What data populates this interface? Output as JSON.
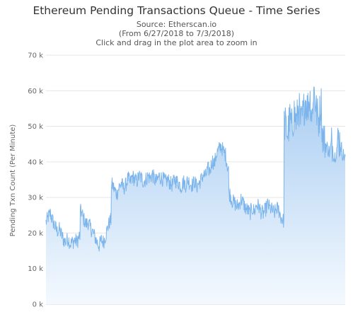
{
  "chart_data": {
    "type": "area",
    "title": "Ethereum Pending Transactions Queue - Time Series",
    "subtitle_lines": [
      "Source: Etherscan.io",
      "(From 6/27/2018 to 7/3/2018)",
      "Click and drag in the plot area to zoom in"
    ],
    "ylabel": "Pending Txn Count (Per Minute)",
    "ylim": [
      0,
      70000
    ],
    "yticks": [
      0,
      10000,
      20000,
      30000,
      40000,
      50000,
      60000,
      70000
    ],
    "ytick_labels": [
      "0 k",
      "10 k",
      "20 k",
      "30 k",
      "40 k",
      "50 k",
      "60 k",
      "70 k"
    ],
    "grid": true,
    "legend": "none",
    "colors": {
      "line": "#7cb5ec",
      "fill_top": "#a9cdf2",
      "fill_bottom": "#f4f9fe",
      "grid": "#e6e6e6"
    },
    "x_date_range": [
      "2018-06-27",
      "2018-07-03"
    ],
    "series": [
      {
        "values": [
          23000,
          24500,
          25500,
          23500,
          22000,
          20500,
          21000,
          19500,
          18000,
          17500,
          18500,
          17000,
          17500,
          18000,
          17500,
          19000,
          26000,
          24000,
          22500,
          23000,
          21500,
          20500,
          19000,
          17500,
          16500,
          18000,
          17500,
          19500,
          22000,
          23500,
          33500,
          32000,
          31000,
          33000,
          34000,
          32500,
          33500,
          35500,
          34000,
          36000,
          35000,
          34500,
          36000,
          35500,
          34500,
          35000,
          36000,
          35500,
          36500,
          35000,
          34500,
          36000,
          35500,
          35000,
          34500,
          35000,
          34000,
          33500,
          35000,
          34500,
          34000,
          33000,
          34500,
          33500,
          35000,
          34000,
          33500,
          34500,
          33000,
          34000,
          35000,
          36500,
          36000,
          38000,
          37500,
          40500,
          39500,
          42500,
          43500,
          44500,
          43000,
          42000,
          38500,
          31000,
          29000,
          28500,
          27500,
          28000,
          29500,
          28500,
          27000,
          26500,
          25500,
          27000,
          26000,
          28000,
          27500,
          26000,
          25500,
          26500,
          28000,
          27000,
          26500,
          25500,
          27000,
          26500,
          24500,
          23500,
          50500,
          48000,
          52000,
          49500,
          54000,
          51000,
          56000,
          50500,
          53500,
          57500,
          55000,
          58500,
          53000,
          60000,
          54500,
          51500,
          56500,
          47500,
          45000,
          44000,
          42500,
          46000,
          41000,
          43000,
          47000,
          44500,
          42000,
          41500
        ]
      }
    ]
  }
}
